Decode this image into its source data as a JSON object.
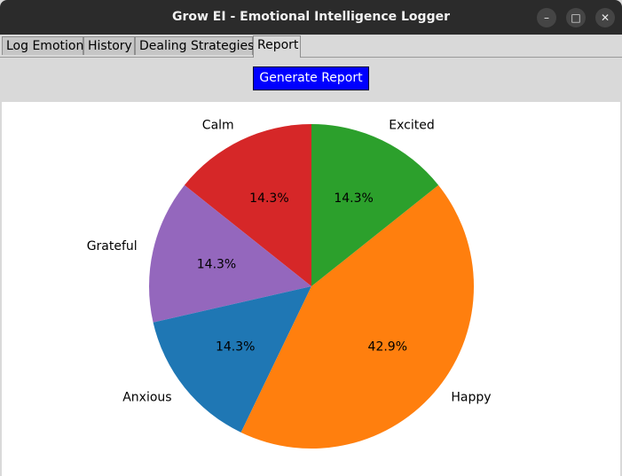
{
  "window": {
    "title": "Grow EI - Emotional Intelligence Logger",
    "controls": {
      "minimize": "–",
      "maximize": "□",
      "close": "✕"
    }
  },
  "tabs": [
    {
      "label": "Log Emotion",
      "active": false
    },
    {
      "label": "History",
      "active": false
    },
    {
      "label": "Dealing Strategies",
      "active": false
    },
    {
      "label": "Report",
      "active": true
    }
  ],
  "report": {
    "generate_label": "Generate Report",
    "button_color": "#0000ff"
  },
  "chart_data": {
    "type": "pie",
    "start_angle": 90,
    "direction": "counterclockwise",
    "slices": [
      {
        "label": "Calm",
        "value": 14.3,
        "pct_label": "14.3%",
        "color": "#d62728"
      },
      {
        "label": "Grateful",
        "value": 14.3,
        "pct_label": "14.3%",
        "color": "#9467bd"
      },
      {
        "label": "Anxious",
        "value": 14.3,
        "pct_label": "14.3%",
        "color": "#1f77b4"
      },
      {
        "label": "Happy",
        "value": 42.9,
        "pct_label": "42.9%",
        "color": "#ff7f0e"
      },
      {
        "label": "Excited",
        "value": 14.3,
        "pct_label": "14.3%",
        "color": "#2ca02c"
      }
    ]
  }
}
